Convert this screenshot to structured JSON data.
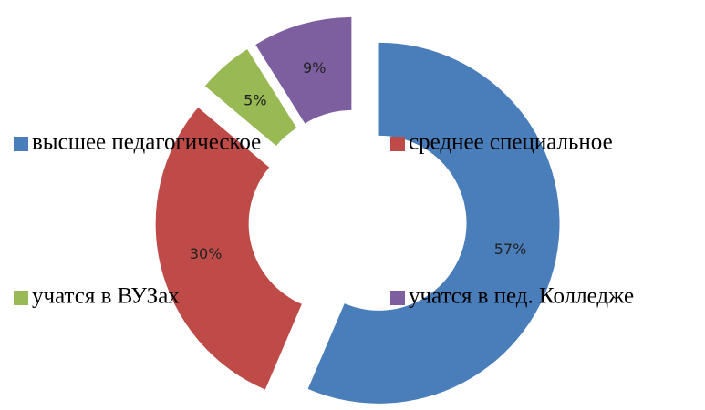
{
  "chart_data": {
    "type": "donut",
    "categories": [
      "высшее педагогическое",
      "среднее специальное",
      "учатся в ВУЗах",
      "учатся в пед. Колледже"
    ],
    "values": [
      57,
      30,
      5,
      9
    ],
    "value_labels": [
      "57%",
      "30%",
      "5%",
      "9%"
    ],
    "colors": [
      "#4a7ebb",
      "#be4b48",
      "#98b954",
      "#7d5fa0"
    ],
    "legend": "overlay"
  }
}
